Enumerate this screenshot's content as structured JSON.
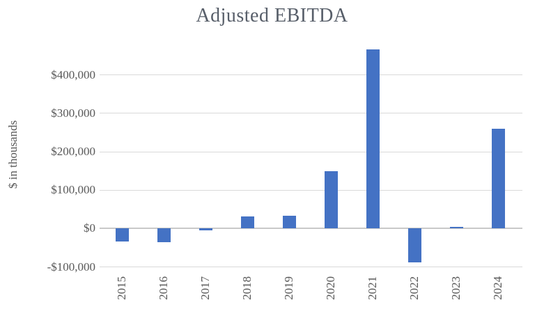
{
  "title": "Adjusted EBITDA",
  "chart_data": {
    "type": "bar",
    "title": "Adjusted EBITDA",
    "xlabel": "",
    "ylabel": "$ in thousands",
    "categories": [
      "2015",
      "2016",
      "2017",
      "2018",
      "2019",
      "2020",
      "2021",
      "2022",
      "2023",
      "2024"
    ],
    "values": [
      -33000,
      -35000,
      -5000,
      31000,
      34000,
      150000,
      466000,
      -88000,
      4000,
      260000
    ],
    "series": [
      {
        "name": "Adjusted EBITDA",
        "values": [
          -33000,
          -35000,
          -5000,
          31000,
          34000,
          150000,
          466000,
          -88000,
          4000,
          260000
        ]
      }
    ],
    "ylim": [
      -100000,
      500000
    ],
    "grid": "horizontal-only",
    "legend": "none",
    "y_ticks": [
      {
        "value": 400000,
        "label": "$400,000"
      },
      {
        "value": 300000,
        "label": "$300,000"
      },
      {
        "value": 200000,
        "label": "$200,000"
      },
      {
        "value": 100000,
        "label": "$100,000"
      },
      {
        "value": 0,
        "label": "$0"
      },
      {
        "value": -100000,
        "label": "-$100,000"
      }
    ],
    "colors": {
      "bar": "#4472c4",
      "gridline": "#d9d9d9",
      "axis_line": "#c9c9c9",
      "tick_text": "#595959",
      "title_text": "#575e69",
      "background": "#ffffff"
    }
  }
}
